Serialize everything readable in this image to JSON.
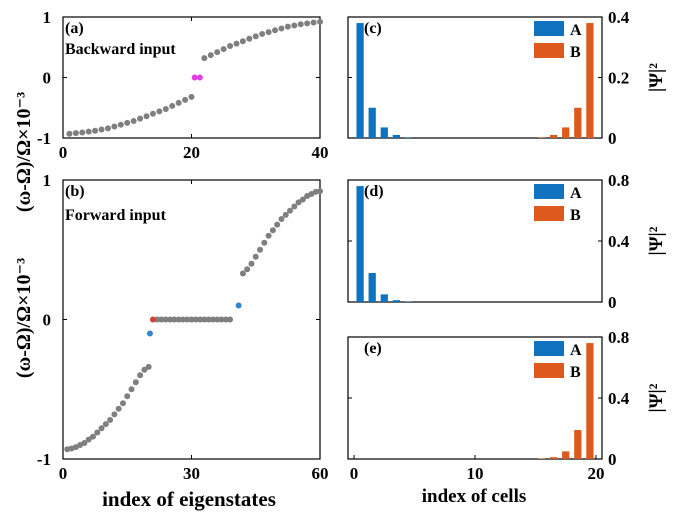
{
  "figure": {
    "ylabel_left": "(ω-Ω)/Ω×10⁻³",
    "xlabel_left": "index of eigenstates",
    "xlabel_right": "index of cells",
    "ylabel_right": "|Ψ|²"
  },
  "colors": {
    "gray": "#7f7f7f",
    "magenta": "#e040e0",
    "blue": "#2f86cf",
    "red": "#d64232",
    "barA": "#0f73bf",
    "barB": "#dd5a1c"
  },
  "chart_data": [
    {
      "id": "a",
      "type": "scatter",
      "panel_label": "(a)",
      "annotation": "Backward input",
      "xlim": [
        0,
        40
      ],
      "ylim": [
        -1,
        1
      ],
      "x_ticks": [
        "0",
        "20",
        "40"
      ],
      "y_ticks": [
        "-1",
        "0",
        "1"
      ],
      "series": [
        {
          "color": "gray",
          "points": [
            [
              1,
              -0.93
            ],
            [
              2,
              -0.92
            ],
            [
              3,
              -0.91
            ],
            [
              4,
              -0.895
            ],
            [
              5,
              -0.88
            ],
            [
              6,
              -0.86
            ],
            [
              7,
              -0.84
            ],
            [
              8,
              -0.81
            ],
            [
              9,
              -0.78
            ],
            [
              10,
              -0.75
            ],
            [
              11,
              -0.72
            ],
            [
              12,
              -0.68
            ],
            [
              13,
              -0.64
            ],
            [
              14,
              -0.6
            ],
            [
              15,
              -0.56
            ],
            [
              16,
              -0.52
            ],
            [
              17,
              -0.47
            ],
            [
              18,
              -0.42
            ],
            [
              19,
              -0.37
            ],
            [
              20,
              -0.32
            ],
            [
              22,
              0.32
            ],
            [
              23,
              0.37
            ],
            [
              24,
              0.42
            ],
            [
              25,
              0.47
            ],
            [
              26,
              0.52
            ],
            [
              27,
              0.56
            ],
            [
              28,
              0.6
            ],
            [
              29,
              0.64
            ],
            [
              30,
              0.68
            ],
            [
              31,
              0.72
            ],
            [
              32,
              0.75
            ],
            [
              33,
              0.78
            ],
            [
              34,
              0.81
            ],
            [
              35,
              0.84
            ],
            [
              36,
              0.86
            ],
            [
              37,
              0.88
            ],
            [
              38,
              0.895
            ],
            [
              39,
              0.91
            ],
            [
              40,
              0.92
            ]
          ]
        },
        {
          "color": "magenta",
          "points": [
            [
              20.5,
              0
            ],
            [
              21.3,
              0
            ]
          ]
        }
      ]
    },
    {
      "id": "b",
      "type": "scatter",
      "panel_label": "(b)",
      "annotation": "Forward input",
      "xlim": [
        0,
        60
      ],
      "ylim": [
        -1,
        1
      ],
      "x_ticks": [
        "0",
        "30",
        "60"
      ],
      "y_ticks": [
        "-1",
        "0",
        "1"
      ],
      "series": [
        {
          "color": "gray",
          "points": [
            [
              1,
              -0.93
            ],
            [
              2,
              -0.925
            ],
            [
              3,
              -0.915
            ],
            [
              4,
              -0.9
            ],
            [
              5,
              -0.885
            ],
            [
              6,
              -0.86
            ],
            [
              7,
              -0.84
            ],
            [
              8,
              -0.81
            ],
            [
              9,
              -0.78
            ],
            [
              10,
              -0.75
            ],
            [
              11,
              -0.72
            ],
            [
              12,
              -0.68
            ],
            [
              13,
              -0.64
            ],
            [
              14,
              -0.6
            ],
            [
              15,
              -0.55
            ],
            [
              16,
              -0.5
            ],
            [
              17,
              -0.45
            ],
            [
              18,
              -0.4
            ],
            [
              19,
              -0.36
            ],
            [
              20,
              -0.34
            ],
            [
              22,
              0
            ],
            [
              23,
              0
            ],
            [
              24,
              0
            ],
            [
              25,
              0
            ],
            [
              26,
              0
            ],
            [
              27,
              0
            ],
            [
              28,
              0
            ],
            [
              29,
              0
            ],
            [
              30,
              0
            ],
            [
              31,
              0
            ],
            [
              32,
              0
            ],
            [
              33,
              0
            ],
            [
              34,
              0
            ],
            [
              35,
              0
            ],
            [
              36,
              0
            ],
            [
              37,
              0
            ],
            [
              38,
              0
            ],
            [
              39,
              0
            ],
            [
              42,
              0.33
            ],
            [
              43,
              0.36
            ],
            [
              44,
              0.4
            ],
            [
              45,
              0.45
            ],
            [
              46,
              0.5
            ],
            [
              47,
              0.55
            ],
            [
              48,
              0.6
            ],
            [
              49,
              0.64
            ],
            [
              50,
              0.68
            ],
            [
              51,
              0.72
            ],
            [
              52,
              0.75
            ],
            [
              53,
              0.78
            ],
            [
              54,
              0.81
            ],
            [
              55,
              0.84
            ],
            [
              56,
              0.86
            ],
            [
              57,
              0.885
            ],
            [
              58,
              0.9
            ],
            [
              59,
              0.915
            ],
            [
              60,
              0.92
            ]
          ]
        },
        {
          "color": "blue",
          "points": [
            [
              20.3,
              -0.1
            ],
            [
              41,
              0.1
            ]
          ]
        },
        {
          "color": "red",
          "points": [
            [
              21,
              0
            ]
          ]
        }
      ]
    },
    {
      "id": "c",
      "type": "bar",
      "panel_label": "(c)",
      "xlim": [
        0,
        21
      ],
      "ylim": [
        0,
        0.4
      ],
      "y_ticks": [
        "0",
        "0.2",
        "0.4"
      ],
      "x_ticks": [],
      "legend": [
        "A",
        "B"
      ],
      "series": [
        {
          "name": "A",
          "color": "barA",
          "x": [
            1,
            2,
            3,
            4,
            5
          ],
          "values": [
            0.38,
            0.1,
            0.035,
            0.01,
            0.002
          ]
        },
        {
          "name": "B",
          "color": "barB",
          "x": [
            16,
            17,
            18,
            19,
            20
          ],
          "values": [
            0.002,
            0.01,
            0.035,
            0.1,
            0.38
          ]
        }
      ]
    },
    {
      "id": "d",
      "type": "bar",
      "panel_label": "(d)",
      "xlim": [
        0,
        21
      ],
      "ylim": [
        0,
        0.8
      ],
      "y_ticks": [
        "0",
        "0.4",
        "0.8"
      ],
      "x_ticks": [],
      "legend": [
        "A",
        "B"
      ],
      "series": [
        {
          "name": "A",
          "color": "barA",
          "x": [
            1,
            2,
            3,
            4,
            5
          ],
          "values": [
            0.76,
            0.19,
            0.05,
            0.012,
            0.003
          ]
        },
        {
          "name": "B",
          "color": "barB",
          "x": [],
          "values": []
        }
      ]
    },
    {
      "id": "e",
      "type": "bar",
      "panel_label": "(e)",
      "xlim": [
        0,
        21
      ],
      "ylim": [
        0,
        0.8
      ],
      "y_ticks": [
        "0",
        "0.4",
        "0.8"
      ],
      "x_ticks": [
        "0",
        "10",
        "20"
      ],
      "legend": [
        "A",
        "B"
      ],
      "series": [
        {
          "name": "A",
          "color": "barA",
          "x": [],
          "values": []
        },
        {
          "name": "B",
          "color": "barB",
          "x": [
            16,
            17,
            18,
            19,
            20
          ],
          "values": [
            0.003,
            0.012,
            0.05,
            0.19,
            0.76
          ]
        }
      ]
    }
  ]
}
